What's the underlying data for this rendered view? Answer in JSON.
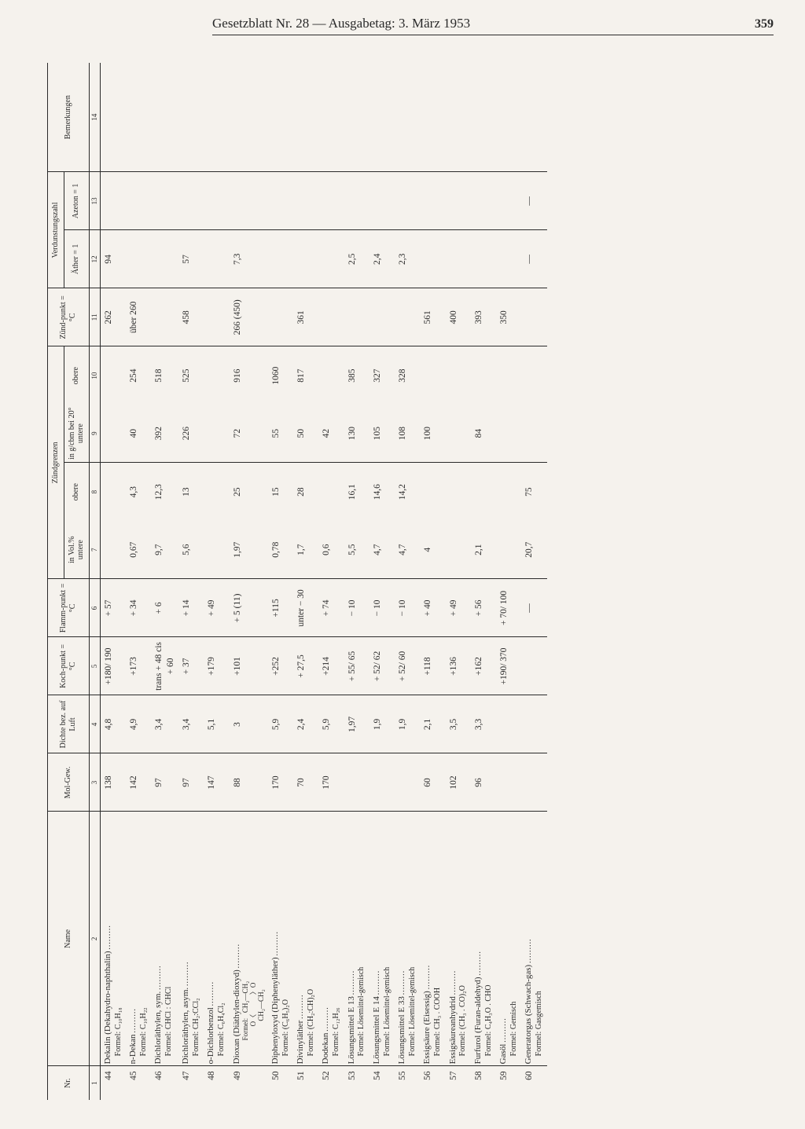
{
  "header": {
    "title": "Gesetzblatt Nr. 28 — Ausgabetag: 3. März 1953",
    "page": "359"
  },
  "columns": {
    "nr": "Nr.",
    "name": "Name",
    "mol": "Mol-Gew.",
    "dichte": "Dichte bez. auf Luft",
    "koch": "Koch-punkt = °C",
    "flamm": "Flamm-punkt = °C",
    "zuend_group": "Zündgrenzen",
    "vol_group": "in Vol.%",
    "vol_u": "untere",
    "vol_o": "obere",
    "gcbm_group": "in g/cbm bei 20°",
    "gcbm_u": "untere",
    "gcbm_o": "obere",
    "zuendp": "Zünd-punkt = °C",
    "verd_group": "Verdunstungszahl",
    "ather": "Äther = 1",
    "azeton": "Azeton = 1",
    "bem": "Bemerkungen"
  },
  "colnums": {
    "c1": "1",
    "c2": "2",
    "c3": "3",
    "c4": "4",
    "c5": "5",
    "c6": "6",
    "c7": "7",
    "c8": "8",
    "c9": "9",
    "c10": "10",
    "c11": "11",
    "c12": "12",
    "c13": "13",
    "c14": "14"
  },
  "rows": [
    {
      "nr": "44",
      "name": "Dekalin (Dekahydro-naphthalin)",
      "formel": "Formel: C₁₀H₁₈",
      "mol": "138",
      "dichte": "4,8",
      "koch": "+180/ 190",
      "flamm": "+ 57",
      "vu": "",
      "vo": "",
      "gu": "",
      "go": "",
      "zp": "262",
      "ath": "94",
      "az": "",
      "bem": ""
    },
    {
      "nr": "45",
      "name": "n-Dekan",
      "formel": "Formel: C₁₀H₂₂",
      "mol": "142",
      "dichte": "4,9",
      "koch": "+173",
      "flamm": "+ 34",
      "vu": "0,67",
      "vo": "4,3",
      "gu": "40",
      "go": "254",
      "zp": "über 260",
      "ath": "",
      "az": "",
      "bem": ""
    },
    {
      "nr": "46",
      "name": "Dichloräthylen, sym.",
      "formel": "Formel: CHCl : CHCl",
      "mol": "97",
      "dichte": "3,4",
      "koch": "trans + 48 cis + 60",
      "flamm": "+  6",
      "vu": "9,7",
      "vo": "12,3",
      "gu": "392",
      "go": "518",
      "zp": "",
      "ath": "",
      "az": "",
      "bem": ""
    },
    {
      "nr": "47",
      "name": "Dichloräthylen, asym.",
      "formel": "Formel: CH₂:CCl₂",
      "mol": "97",
      "dichte": "3,4",
      "koch": "+ 37",
      "flamm": "+ 14",
      "vu": "5,6",
      "vo": "13",
      "gu": "226",
      "go": "525",
      "zp": "458",
      "ath": "57",
      "az": "",
      "bem": ""
    },
    {
      "nr": "48",
      "name": "o-Dichlorbenzol",
      "formel": "Formel: C₆H₄Cl₂",
      "mol": "147",
      "dichte": "5,1",
      "koch": "+179",
      "flamm": "+ 49",
      "vu": "",
      "vo": "",
      "gu": "",
      "go": "",
      "zp": "",
      "ath": "",
      "az": "",
      "bem": ""
    },
    {
      "nr": "49",
      "name": "Dioxan (Diäthylen-dioxyd)",
      "formel": "",
      "diagram": true,
      "mol": "88",
      "dichte": "3",
      "koch": "+101",
      "flamm": "+  5 (11)",
      "vu": "1,97",
      "vo": "25",
      "gu": "72",
      "go": "916",
      "zp": "266 (450)",
      "ath": "7,3",
      "az": "",
      "bem": ""
    },
    {
      "nr": "50",
      "name": "Diphenyloxyd (Diphenyläther)",
      "formel": "Formel: (C₆H₅)₂O",
      "mol": "170",
      "dichte": "5,9",
      "koch": "+252",
      "flamm": "+115",
      "vu": "0,78",
      "vo": "15",
      "gu": "55",
      "go": "1060",
      "zp": "",
      "ath": "",
      "az": "",
      "bem": ""
    },
    {
      "nr": "51",
      "name": "Divinyläther",
      "formel": "Formel: (CH₂:CH)₂O",
      "mol": "70",
      "dichte": "2,4",
      "koch": "+ 27,5",
      "flamm": "unter − 30",
      "vu": "1,7",
      "vo": "28",
      "gu": "50",
      "go": "817",
      "zp": "361",
      "ath": "",
      "az": "",
      "bem": ""
    },
    {
      "nr": "52",
      "name": "Dodekan",
      "formel": "Formel: C₁₂H₂₆",
      "mol": "170",
      "dichte": "5,9",
      "koch": "+214",
      "flamm": "+ 74",
      "vu": "0,6",
      "vo": "",
      "gu": "42",
      "go": "",
      "zp": "",
      "ath": "",
      "az": "",
      "bem": ""
    },
    {
      "nr": "53",
      "name": "Lösungsmittel E 13",
      "formel": "Formel: Lösemittel-gemisch",
      "mol": "",
      "dichte": "1,97",
      "koch": "+ 55/ 65",
      "flamm": "− 10",
      "vu": "5,5",
      "vo": "16,1",
      "gu": "130",
      "go": "385",
      "zp": "",
      "ath": "2,5",
      "az": "",
      "bem": ""
    },
    {
      "nr": "54",
      "name": "Lösungsmittel E 14",
      "formel": "Formel: Lösemittel-gemisch",
      "mol": "",
      "dichte": "1,9",
      "koch": "+ 52/ 62",
      "flamm": "− 10",
      "vu": "4,7",
      "vo": "14,6",
      "gu": "105",
      "go": "327",
      "zp": "",
      "ath": "2,4",
      "az": "",
      "bem": ""
    },
    {
      "nr": "55",
      "name": "Lösungsmittel E 33",
      "formel": "Formel: Lösemittel-gemisch",
      "mol": "",
      "dichte": "1,9",
      "koch": "+ 52/ 60",
      "flamm": "− 10",
      "vu": "4,7",
      "vo": "14,2",
      "gu": "108",
      "go": "328",
      "zp": "",
      "ath": "2,3",
      "az": "",
      "bem": ""
    },
    {
      "nr": "56",
      "name": "Essigsäure (Eisessig)",
      "formel": "Formel: CH₃ . COOH",
      "mol": "60",
      "dichte": "2,1",
      "koch": "+118",
      "flamm": "+ 40",
      "vu": "4",
      "vo": "",
      "gu": "100",
      "go": "",
      "zp": "561",
      "ath": "",
      "az": "",
      "bem": ""
    },
    {
      "nr": "57",
      "name": "Essigsäureanhydrid",
      "formel": "Formel: (CH₃ . CO)₂O",
      "mol": "102",
      "dichte": "3,5",
      "koch": "+136",
      "flamm": "+ 49",
      "vu": "",
      "vo": "",
      "gu": "",
      "go": "",
      "zp": "400",
      "ath": "",
      "az": "",
      "bem": ""
    },
    {
      "nr": "58",
      "name": "Furfurol (Furan-aldehyd)",
      "formel": "Formel: C₄H₃O . CHO",
      "mol": "96",
      "dichte": "3,3",
      "koch": "+162",
      "flamm": "+ 56",
      "vu": "2,1",
      "vo": "",
      "gu": "84",
      "go": "",
      "zp": "393",
      "ath": "",
      "az": "",
      "bem": ""
    },
    {
      "nr": "59",
      "name": "Gasöl",
      "formel": "Formel: Gemisch",
      "mol": "",
      "dichte": "",
      "koch": "+190/ 370",
      "flamm": "+ 70/ 100",
      "vu": "",
      "vo": "",
      "gu": "",
      "go": "",
      "zp": "350",
      "ath": "",
      "az": "",
      "bem": ""
    },
    {
      "nr": "60",
      "name": "Generatorgas (Schwach-gas)",
      "formel": "Formel: Gasgemisch",
      "mol": "",
      "dichte": "",
      "koch": "",
      "flamm": "—",
      "vu": "20,7",
      "vo": "75",
      "gu": "",
      "go": "",
      "zp": "",
      "ath": "—",
      "az": "—",
      "bem": ""
    }
  ],
  "diagram_text": "Formel:   CH₂—CH₂\n        O〈           〉O\n           CH₂—CH₂"
}
